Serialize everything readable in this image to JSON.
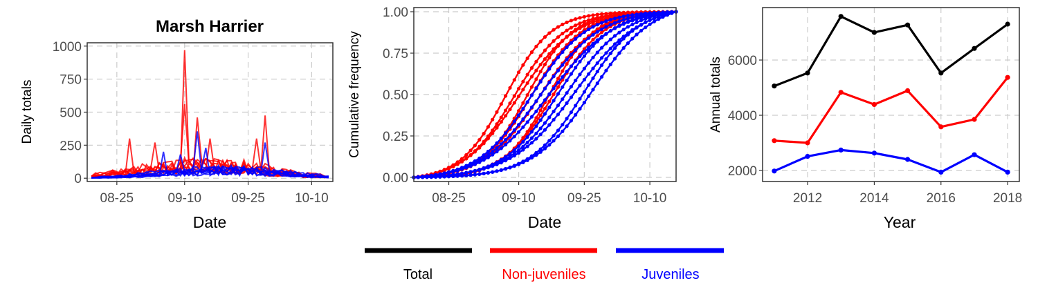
{
  "colors": {
    "total": "#000000",
    "non_juveniles": "#FF0000",
    "juveniles": "#0000FF",
    "grid": "#cccccc",
    "frame": "#333333"
  },
  "legend": {
    "items": [
      {
        "key": "total",
        "label": "Total",
        "color": "#000000"
      },
      {
        "key": "non_juveniles",
        "label": "Non-juveniles",
        "color": "#FF0000"
      },
      {
        "key": "juveniles",
        "label": "Juveniles",
        "color": "#0000FF"
      }
    ]
  },
  "chart_data": [
    {
      "id": "daily",
      "type": "line",
      "title": "Marsh Harrier",
      "xlabel": "Date",
      "ylabel": "Daily totals",
      "x_ticks": [
        "08-25",
        "09-10",
        "09-25",
        "10-10"
      ],
      "x_tick_pos": [
        0,
        16,
        31,
        46
      ],
      "xlim": [
        -7,
        51
      ],
      "y_ticks": [
        0,
        250,
        500,
        750,
        1000
      ],
      "ylim": [
        -25,
        1025
      ],
      "grid": true,
      "series_ids": [
        "2011",
        "2012",
        "2013",
        "2014",
        "2015",
        "2016",
        "2017",
        "2018"
      ]
    },
    {
      "id": "cumulative",
      "type": "line",
      "title": "",
      "xlabel": "Date",
      "ylabel": "Cumulative frequency",
      "x_ticks": [
        "08-25",
        "09-10",
        "09-25",
        "10-10"
      ],
      "x_tick_pos": [
        0,
        16,
        31,
        46
      ],
      "xlim": [
        -8,
        52
      ],
      "y_ticks": [
        "0.00",
        "0.25",
        "0.50",
        "0.75",
        "1.00"
      ],
      "ylim": [
        -0.025,
        1.025
      ],
      "grid": true,
      "series_ids": [
        "2011",
        "2012",
        "2013",
        "2014",
        "2015",
        "2016",
        "2017",
        "2018"
      ]
    },
    {
      "id": "annual",
      "type": "line",
      "title": "",
      "xlabel": "Year",
      "ylabel": "Annual totals",
      "x_ticks": [
        2012,
        2014,
        2016,
        2018
      ],
      "xlim": [
        2010.65,
        2018.35
      ],
      "y_ticks": [
        2000,
        4000,
        6000
      ],
      "ylim": [
        1600,
        7900
      ],
      "grid": true,
      "x": [
        2011,
        2012,
        2013,
        2014,
        2015,
        2016,
        2017,
        2018
      ],
      "series": [
        {
          "key": "total",
          "values": [
            5060,
            5530,
            7580,
            7000,
            7270,
            5530,
            6420,
            7300
          ]
        },
        {
          "key": "non_juveniles",
          "values": [
            3080,
            3000,
            4830,
            4390,
            4890,
            3580,
            3850,
            5370
          ]
        },
        {
          "key": "juveniles",
          "values": [
            1980,
            2510,
            2740,
            2630,
            2400,
            1940,
            2570,
            1940
          ]
        }
      ]
    }
  ]
}
